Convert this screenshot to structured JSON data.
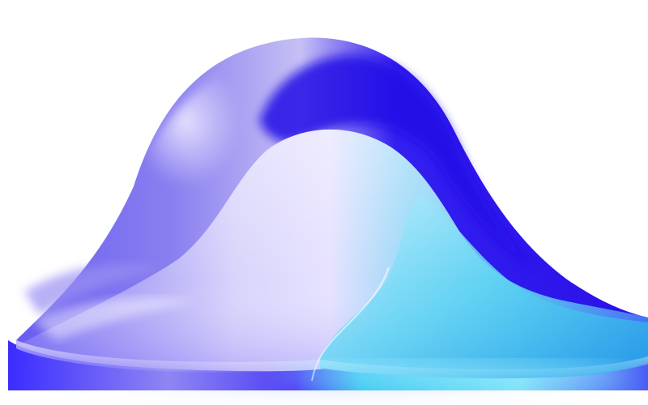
{
  "image": {
    "subject": "glossy-blue-liquid-blob",
    "colors": {
      "background": "#ffffff",
      "deep_blue": "#2a10e8",
      "royal_blue": "#3b2cff",
      "violet_blue": "#5a4cf2",
      "lavender_highlight": "#e4e0ff",
      "pale_lilac": "#c8c2f5",
      "cyan": "#35c8f0",
      "light_cyan": "#a8ecfa",
      "shadow_floor": "#dde6ff"
    }
  }
}
